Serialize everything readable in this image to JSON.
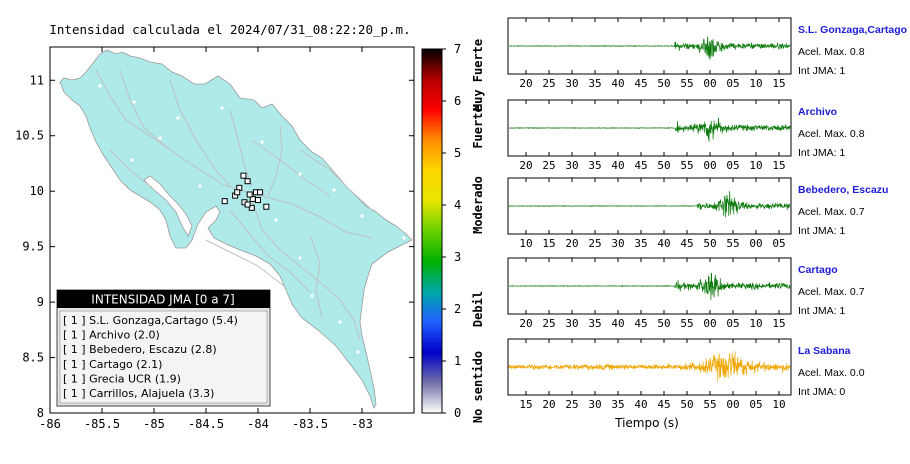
{
  "map": {
    "title": "Intensidad calculada el 2024/07/31_08:22:20_p.m.",
    "x_ticks": [
      "-86",
      "-85.5",
      "-85",
      "-84.5",
      "-84",
      "-83.5",
      "-83"
    ],
    "y_ticks": [
      "11",
      "10.5",
      "10",
      "9.5",
      "9",
      "8.5",
      "8"
    ],
    "xlim": [
      -86,
      -82.5
    ],
    "ylim": [
      8,
      11.3
    ],
    "land_color": "#aeeaea",
    "stations": [
      {
        "lon": -84.1,
        "lat": 10.09
      },
      {
        "lon": -84.18,
        "lat": 10.03
      },
      {
        "lon": -84.05,
        "lat": 9.93
      },
      {
        "lon": -83.92,
        "lat": 9.86
      },
      {
        "lon": -84.22,
        "lat": 9.96
      },
      {
        "lon": -84.02,
        "lat": 9.99
      },
      {
        "lon": -84.06,
        "lat": 9.85
      },
      {
        "lon": -84.13,
        "lat": 9.9
      },
      {
        "lon": -84.32,
        "lat": 9.91
      },
      {
        "lon": -84.14,
        "lat": 10.14
      },
      {
        "lon": -83.98,
        "lat": 9.99
      },
      {
        "lon": -84.2,
        "lat": 9.99
      },
      {
        "lon": -84.08,
        "lat": 9.97
      },
      {
        "lon": -84.0,
        "lat": 9.92
      },
      {
        "lon": -84.1,
        "lat": 9.88
      }
    ]
  },
  "legend": {
    "title": "INTENSIDAD JMA [0 a 7]",
    "items": [
      "[ 1 ]  S.L. Gonzaga,Cartago (5.4)",
      "[ 1 ]  Archivo (2.0)",
      "[ 1 ]  Bebedero, Escazu (2.8)",
      "[ 1 ]  Cartago (2.1)",
      "[ 1 ]  Grecia UCR (1.9)",
      "[ 1 ]  Carrillos, Alajuela (3.3)"
    ]
  },
  "colorbar": {
    "ticks": [
      "7",
      "6",
      "5",
      "4",
      "3",
      "2",
      "1",
      "0"
    ],
    "labels": [
      "Muy Fuerte",
      "Fuerte",
      "Moderado",
      "Debil",
      "No sentido"
    ],
    "colors": [
      "#000000",
      "#b40000",
      "#ff0000",
      "#ff8c00",
      "#ffd700",
      "#e6e600",
      "#6ad000",
      "#00b000",
      "#00a8a8",
      "#2060ff",
      "#0000c8",
      "#7070a8",
      "#ffffff"
    ]
  },
  "chart_data": {
    "type": "line",
    "xlabel": "Tiempo (s)",
    "series": [
      {
        "name": "S.L. Gonzaga,Cartago",
        "acel": "Acel. Max. 0.8",
        "jma": "Int JMA: 1",
        "color": "#0c7a0c",
        "ticks": [
          "20",
          "25",
          "30",
          "35",
          "40",
          "45",
          "50",
          "55",
          "00",
          "05",
          "10",
          "15"
        ],
        "onset": 0.59,
        "peak": 0.72
      },
      {
        "name": "Archivo",
        "acel": "Acel. Max. 0.8",
        "jma": "Int JMA: 1",
        "color": "#0c7a0c",
        "ticks": [
          "20",
          "25",
          "30",
          "35",
          "40",
          "45",
          "50",
          "55",
          "00",
          "05",
          "10",
          "15"
        ],
        "onset": 0.59,
        "peak": 0.72
      },
      {
        "name": "Bebedero, Escazu",
        "acel": "Acel. Max. 0.7",
        "jma": "Int JMA: 1",
        "color": "#0c7a0c",
        "ticks": [
          "10",
          "15",
          "20",
          "25",
          "30",
          "35",
          "40",
          "45",
          "50",
          "55",
          "00",
          "05"
        ],
        "onset": 0.67,
        "peak": 0.78
      },
      {
        "name": "Cartago",
        "acel": "Acel. Max. 0.7",
        "jma": "Int JMA: 1",
        "color": "#0c7a0c",
        "ticks": [
          "20",
          "25",
          "30",
          "35",
          "40",
          "45",
          "50",
          "55",
          "00",
          "05",
          "10",
          "15"
        ],
        "onset": 0.59,
        "peak": 0.72
      },
      {
        "name": "La Sabana",
        "acel": "Acel. Max. 0.0",
        "jma": "Int JMA: 0",
        "color": "#f0a500",
        "ticks": [
          "15",
          "20",
          "25",
          "30",
          "35",
          "40",
          "45",
          "50",
          "55",
          "00",
          "05",
          "10"
        ],
        "onset": 0.62,
        "peak": 0.78
      }
    ]
  }
}
